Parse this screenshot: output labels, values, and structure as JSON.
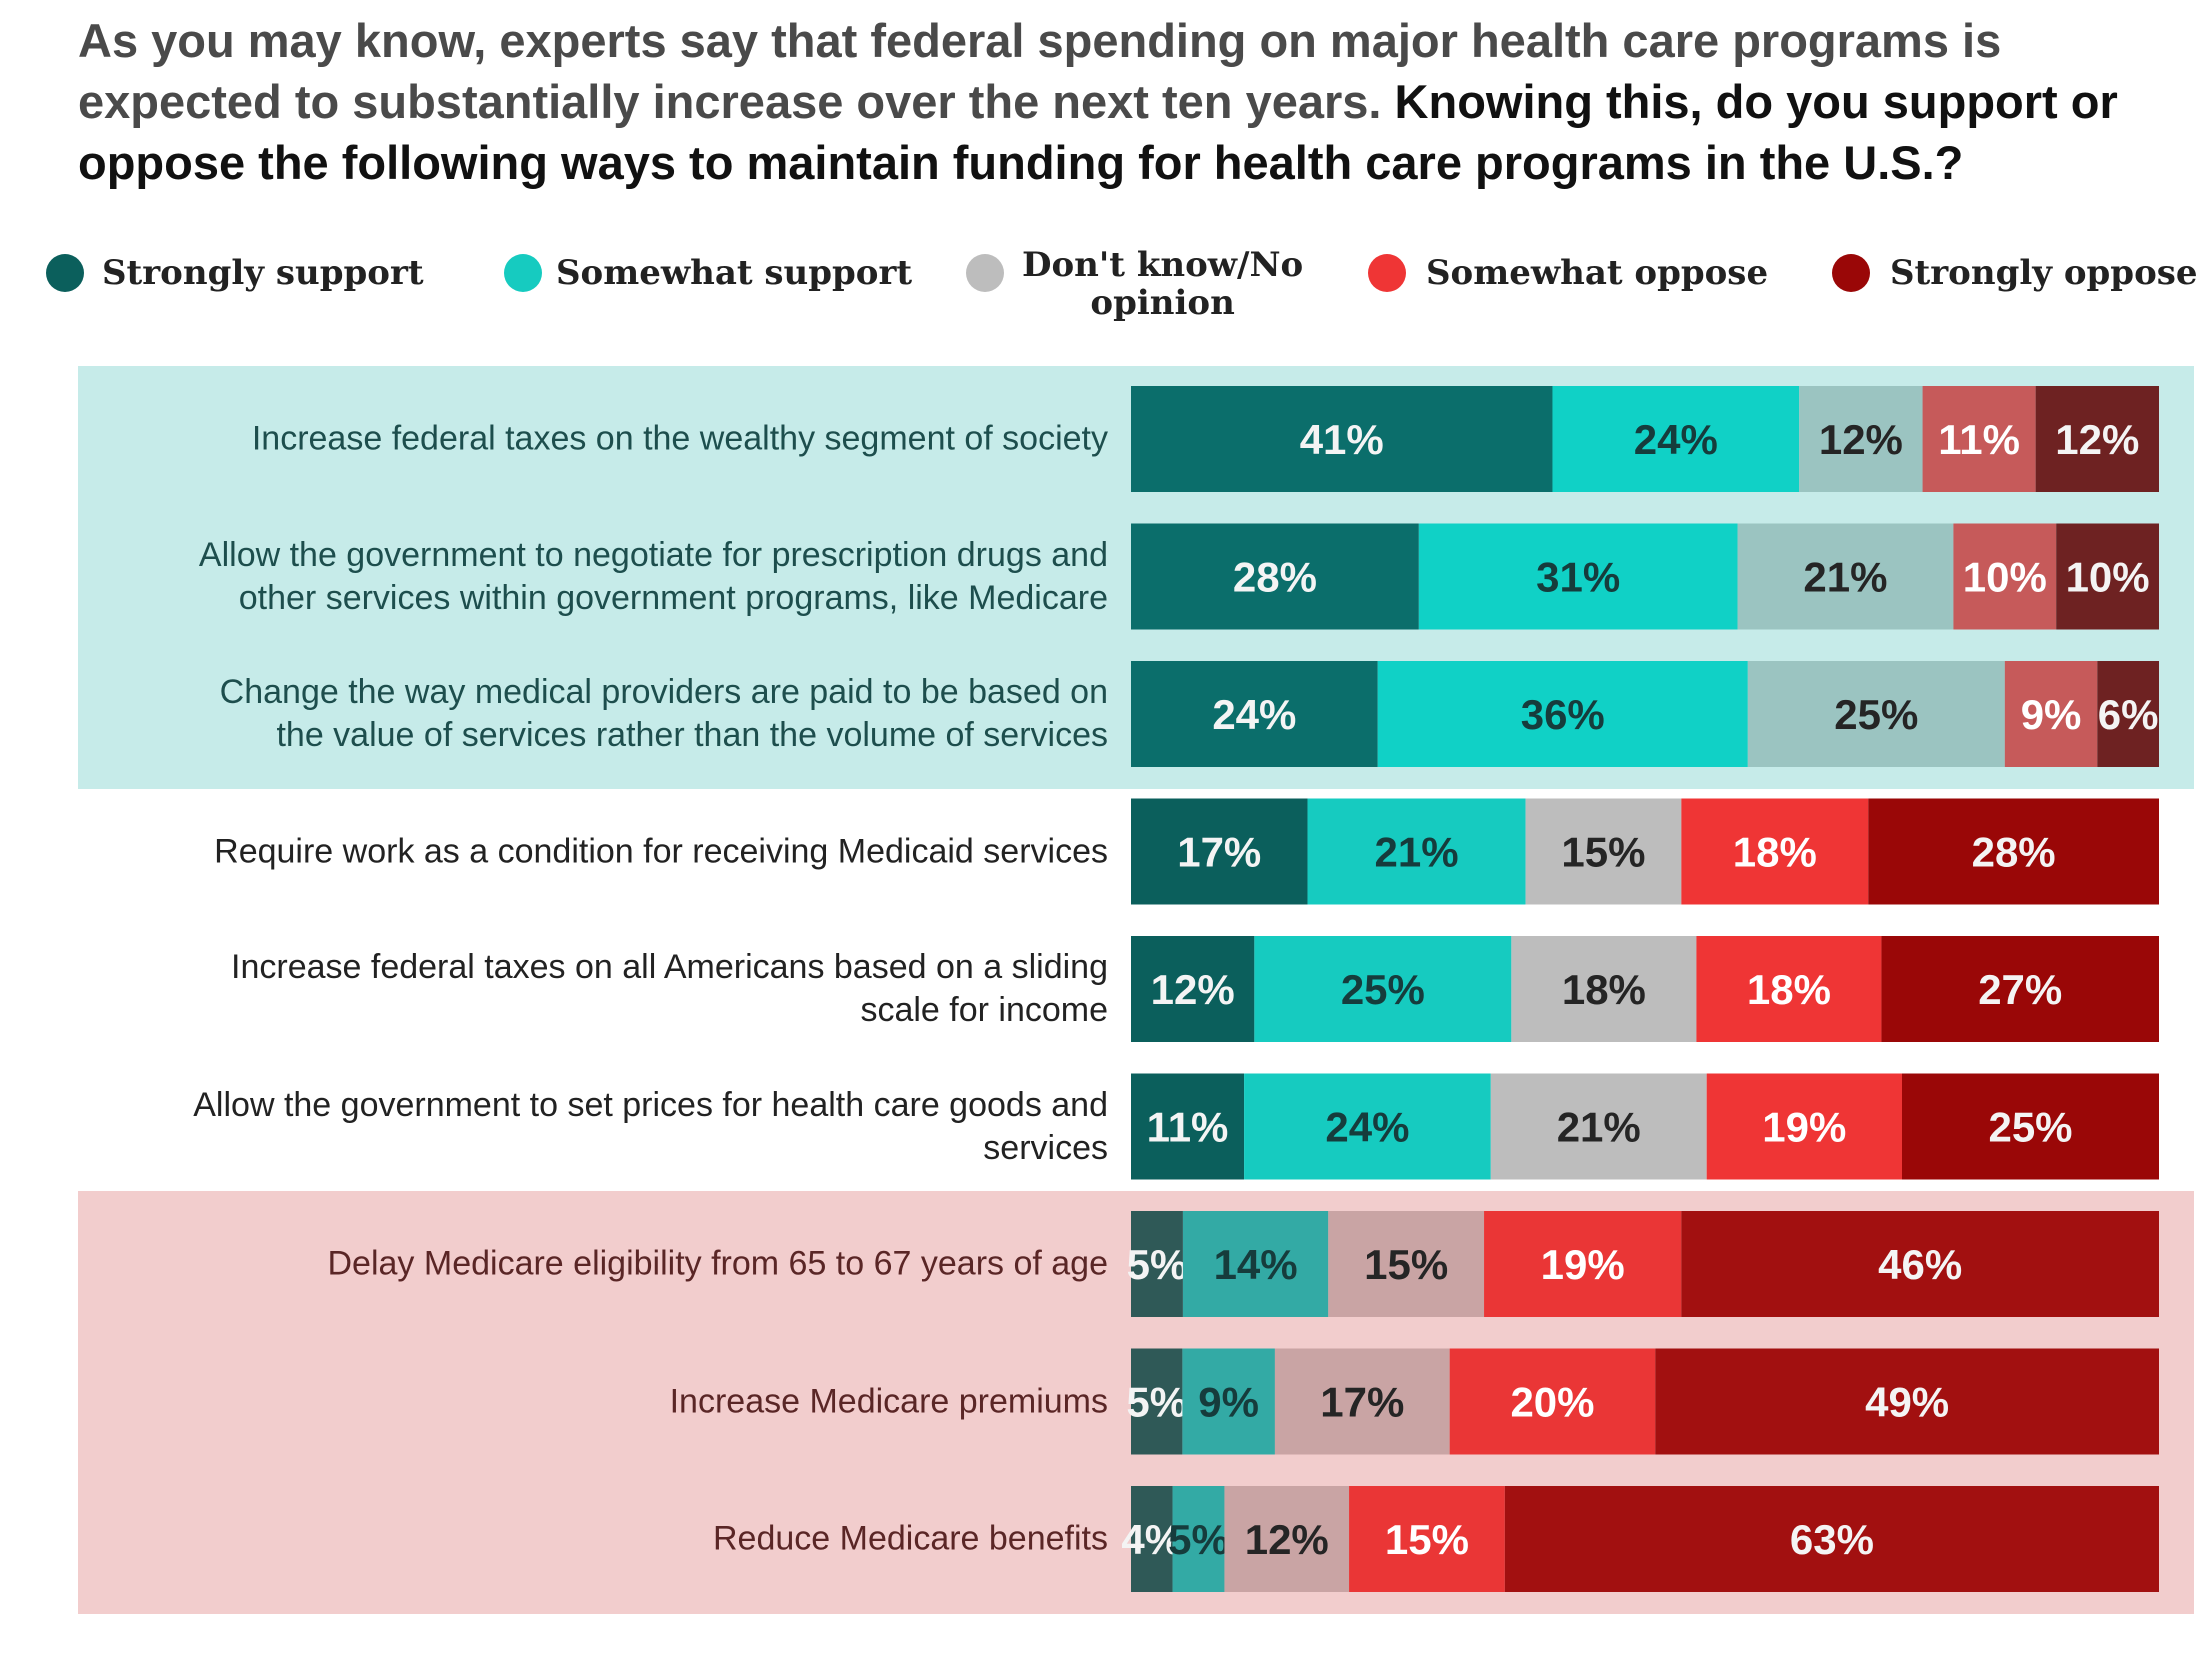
{
  "title": {
    "lead": "As you may know, experts say that federal spending on major health care programs is expected to substantially increase over the next ten years.",
    "question": "Knowing this, do you support or oppose the following ways to maintain funding for health care programs in the U.S.?"
  },
  "legend": [
    {
      "label": "Strongly support",
      "color": "#0b5f5c"
    },
    {
      "label": "Somewhat support",
      "color": "#16cbc0"
    },
    {
      "label": "Don't know/No opinion",
      "color": "#bdbdbd"
    },
    {
      "label": "Somewhat oppose",
      "color": "#ef3535"
    },
    {
      "label": "Strongly oppose",
      "color": "#9a0707"
    }
  ],
  "chart_data": {
    "type": "bar",
    "orientation": "horizontal",
    "stacked": true,
    "unit": "%",
    "categories": [
      "Increase federal taxes on the wealthy segment of society",
      "Allow the government to negotiate for prescription drugs and other services within government programs, like Medicare",
      "Change the way medical providers are paid to be based on the value of services rather than the volume of services",
      "Require work as a condition for receiving Medicaid services",
      "Increase federal taxes on all Americans based on a sliding scale for income",
      "Allow the government to set prices for health care goods and services",
      "Delay Medicare eligibility from 65 to 67 years of age",
      "Increase Medicare premiums",
      "Reduce Medicare benefits"
    ],
    "label_lines": [
      [
        "Increase federal taxes on the wealthy segment of society"
      ],
      [
        "Allow the government to negotiate for prescription drugs and",
        "other services within government programs, like Medicare"
      ],
      [
        "Change the way medical providers are paid to be based on",
        "the value of services rather than the volume of services"
      ],
      [
        "Require work as a condition for receiving Medicaid services"
      ],
      [
        "Increase federal taxes on all Americans based on a sliding",
        "scale for income"
      ],
      [
        "Allow the government to set prices for health care goods and",
        "services"
      ],
      [
        "Delay Medicare eligibility from 65 to 67 years of age"
      ],
      [
        "Increase Medicare premiums"
      ],
      [
        "Reduce Medicare benefits"
      ]
    ],
    "series": [
      {
        "name": "Strongly support",
        "values": [
          41,
          28,
          24,
          17,
          12,
          11,
          5,
          5,
          4
        ]
      },
      {
        "name": "Somewhat support",
        "values": [
          24,
          31,
          36,
          21,
          25,
          24,
          14,
          9,
          5
        ]
      },
      {
        "name": "Don't know/No opinion",
        "values": [
          12,
          21,
          25,
          15,
          18,
          21,
          15,
          17,
          12
        ]
      },
      {
        "name": "Somewhat oppose",
        "values": [
          11,
          10,
          9,
          18,
          18,
          19,
          19,
          20,
          15
        ]
      },
      {
        "name": "Strongly oppose",
        "values": [
          12,
          10,
          6,
          28,
          27,
          25,
          46,
          49,
          63
        ]
      }
    ],
    "groups": [
      {
        "rows": [
          0,
          1,
          2
        ],
        "background": "#c6ebe9"
      },
      {
        "rows": [
          6,
          7,
          8
        ],
        "background": "#f2cdcd"
      }
    ]
  }
}
